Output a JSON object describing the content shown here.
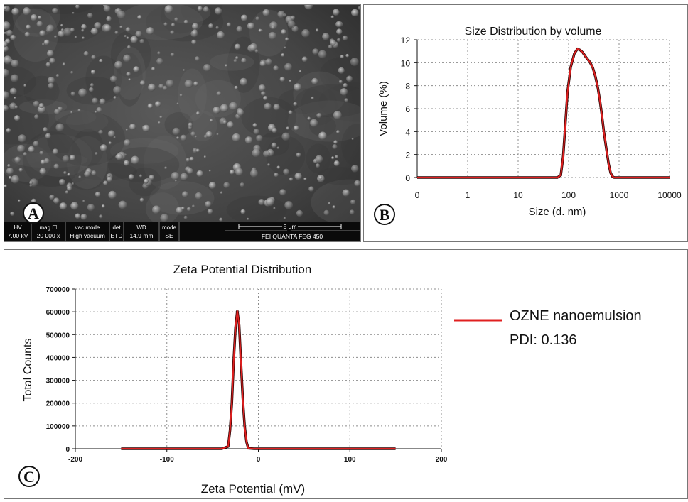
{
  "panel_a": {
    "letter": "A",
    "info_bar": {
      "labels": [
        "HV",
        "mag ☐",
        "vac mode",
        "det",
        "WD",
        "mode"
      ],
      "values": [
        "7.00 kV",
        "20 000 x",
        "High vacuum",
        "ETD",
        "14.9 mm",
        "SE"
      ],
      "scale_label": "5 μm",
      "instrument": "FEI QUANTA FEG 450"
    }
  },
  "panel_b": {
    "letter": "B"
  },
  "panel_c": {
    "letter": "C",
    "legend_label": "OZNE nanoemulsion",
    "pdi": "PDI: 0.136"
  },
  "colors": {
    "series": "#e02020",
    "series_edge": "#2a0000",
    "grid": "#8c8c8c"
  },
  "chart_data": [
    {
      "type": "line",
      "title": "Size Distribution by volume",
      "xlabel": "Size (d. nm)",
      "ylabel": "Volume  (%)",
      "xscale": "log",
      "xticks": [
        "0",
        "1",
        "10",
        "100",
        "1000",
        "10000"
      ],
      "yticks": [
        "0",
        "2",
        "4",
        "6",
        "8",
        "10",
        "12"
      ],
      "ylim": [
        0,
        12
      ],
      "grid": true,
      "series": [
        {
          "x": [
            0.1,
            10,
            60,
            70,
            78,
            86,
            95,
            110,
            130,
            150,
            170,
            190,
            220,
            260,
            300,
            340,
            380,
            420,
            460,
            500,
            560,
            620,
            680,
            740,
            800,
            1000,
            10000
          ],
          "y": [
            0,
            0,
            0,
            0.2,
            1.8,
            4.5,
            7.4,
            9.6,
            10.8,
            11.2,
            11.1,
            10.9,
            10.5,
            10.1,
            9.6,
            8.8,
            7.8,
            6.6,
            5.3,
            4.0,
            2.5,
            1.2,
            0.4,
            0.1,
            0,
            0,
            0
          ]
        }
      ]
    },
    {
      "type": "line",
      "title": "Zeta Potential Distribution",
      "xlabel": "Zeta Potential (mV)",
      "ylabel": "Total Counts",
      "xticks": [
        "-200",
        "-100",
        "0",
        "100",
        "200"
      ],
      "yticks": [
        "0",
        "100000",
        "200000",
        "300000",
        "400000",
        "500000",
        "600000",
        "700000"
      ],
      "xlim": [
        -200,
        200
      ],
      "ylim": [
        0,
        700000
      ],
      "grid": true,
      "legend": "right",
      "series": [
        {
          "name": "OZNE nanoemulsion",
          "x": [
            -150,
            -40,
            -33,
            -31,
            -29,
            -27,
            -25,
            -23,
            -21,
            -19,
            -17,
            -15,
            -13,
            -11,
            -5,
            150
          ],
          "y": [
            0,
            0,
            10000,
            80000,
            200000,
            380000,
            530000,
            605000,
            540000,
            380000,
            220000,
            100000,
            30000,
            2000,
            0,
            0
          ]
        }
      ]
    }
  ]
}
